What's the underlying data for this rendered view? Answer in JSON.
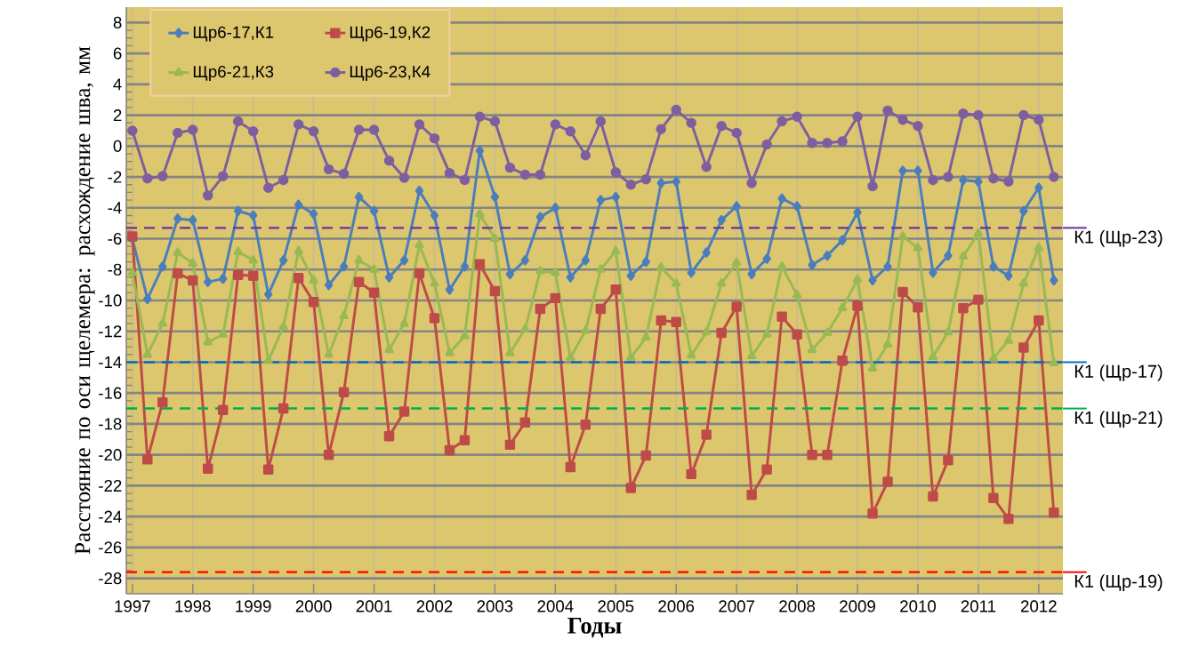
{
  "chart_data": {
    "type": "line",
    "xlabel": "Годы",
    "ylabel": "Расстояние по оси щелемера: расхождение шва, мм",
    "x": [
      1997,
      1997.25,
      1997.5,
      1997.75,
      1998,
      1998.25,
      1998.5,
      1998.75,
      1999,
      1999.25,
      1999.5,
      1999.75,
      2000,
      2000.25,
      2000.5,
      2000.75,
      2001,
      2001.25,
      2001.5,
      2001.75,
      2002,
      2002.25,
      2002.5,
      2002.75,
      2003,
      2003.25,
      2003.5,
      2003.75,
      2004,
      2004.25,
      2004.5,
      2004.75,
      2005,
      2005.25,
      2005.5,
      2005.75,
      2006,
      2006.25,
      2006.5,
      2006.75,
      2007,
      2007.25,
      2007.5,
      2007.75,
      2008,
      2008.25,
      2008.5,
      2008.75,
      2009,
      2009.25,
      2009.5,
      2009.75,
      2010,
      2010.25,
      2010.5,
      2010.75,
      2011,
      2011.25,
      2011.5,
      2011.75,
      2012,
      2012.25
    ],
    "series": [
      {
        "name": "Щр6-17,К1",
        "color": "#4a7ebb",
        "marker": "diamond",
        "values": [
          -6.0,
          -9.9,
          -7.8,
          -4.7,
          -4.8,
          -8.8,
          -8.6,
          -4.2,
          -4.5,
          -9.6,
          -7.4,
          -3.8,
          -4.4,
          -9.0,
          -7.8,
          -3.3,
          -4.2,
          -8.5,
          -7.4,
          -2.9,
          -4.5,
          -9.3,
          -7.8,
          -0.3,
          -3.3,
          -8.3,
          -7.4,
          -4.6,
          -4.0,
          -8.5,
          -7.4,
          -3.5,
          -3.3,
          -8.4,
          -7.5,
          -2.4,
          -2.3,
          -8.2,
          -6.9,
          -4.8,
          -3.9,
          -8.3,
          -7.3,
          -3.4,
          -3.9,
          -7.7,
          -7.1,
          -6.1,
          -4.3,
          -8.7,
          -7.8,
          -1.6,
          -1.6,
          -8.2,
          -7.1,
          -2.2,
          -2.3,
          -7.8,
          -8.4,
          -4.2,
          -2.7,
          -8.7
        ]
      },
      {
        "name": "Щр6-19,К2",
        "color": "#be4b48",
        "marker": "square",
        "values": [
          -5.85,
          -20.3,
          -16.6,
          -8.25,
          -8.7,
          -20.9,
          -17.1,
          -8.35,
          -8.4,
          -20.95,
          -17.0,
          -8.55,
          -10.1,
          -20.0,
          -15.95,
          -8.8,
          -9.5,
          -18.8,
          -17.2,
          -8.25,
          -11.15,
          -19.7,
          -19.05,
          -7.65,
          -9.4,
          -19.35,
          -17.9,
          -10.55,
          -9.85,
          -20.8,
          -18.05,
          -10.55,
          -9.3,
          -22.15,
          -20.05,
          -11.3,
          -11.4,
          -21.25,
          -18.7,
          -12.1,
          -10.4,
          -22.6,
          -20.95,
          -11.05,
          -12.2,
          -20.0,
          -20.0,
          -13.9,
          -10.35,
          -23.8,
          -21.75,
          -9.45,
          -10.45,
          -22.7,
          -20.35,
          -10.5,
          -9.95,
          -22.8,
          -24.15,
          -13.05,
          -11.3,
          -23.75
        ]
      },
      {
        "name": "Щр6-21,К3",
        "color": "#98b954",
        "marker": "triangle",
        "values": [
          -8.2,
          -13.5,
          -11.5,
          -6.9,
          -7.6,
          -12.7,
          -12.2,
          -6.85,
          -7.4,
          -13.9,
          -11.7,
          -6.8,
          -8.7,
          -13.5,
          -11.0,
          -7.4,
          -8.0,
          -13.2,
          -11.5,
          -6.4,
          -8.9,
          -13.4,
          -12.3,
          -4.4,
          -6.0,
          -13.4,
          -11.85,
          -8.1,
          -8.2,
          -13.7,
          -11.95,
          -8.0,
          -6.8,
          -13.7,
          -12.4,
          -7.85,
          -8.9,
          -13.55,
          -12.05,
          -8.9,
          -7.55,
          -13.6,
          -12.2,
          -7.8,
          -9.65,
          -13.2,
          -12.1,
          -10.5,
          -8.65,
          -14.4,
          -12.85,
          -5.85,
          -6.6,
          -13.65,
          -12.05,
          -7.15,
          -5.65,
          -13.75,
          -12.6,
          -8.9,
          -6.6,
          -14.05
        ]
      },
      {
        "name": "Щр6-23,К4",
        "color": "#7d5fa0",
        "marker": "circle",
        "values": [
          1.0,
          -2.1,
          -1.95,
          0.85,
          1.05,
          -3.2,
          -1.95,
          1.6,
          0.95,
          -2.7,
          -2.2,
          1.4,
          0.95,
          -1.5,
          -1.8,
          1.05,
          1.05,
          -0.95,
          -2.05,
          1.4,
          0.5,
          -1.75,
          -2.2,
          1.9,
          1.6,
          -1.4,
          -1.85,
          -1.85,
          1.4,
          0.95,
          -0.6,
          1.6,
          -1.7,
          -2.5,
          -2.15,
          1.1,
          2.35,
          1.5,
          -1.35,
          1.3,
          0.85,
          -2.4,
          0.1,
          1.6,
          1.9,
          0.2,
          0.2,
          0.3,
          1.9,
          -2.6,
          2.3,
          1.7,
          1.3,
          -2.2,
          -2.0,
          2.1,
          2.0,
          -2.1,
          -2.3,
          2.0,
          1.7,
          -2.0
        ]
      }
    ],
    "xlim": [
      1996.9,
      2012.4
    ],
    "ylim": [
      -29,
      9
    ],
    "xticks": [
      1997,
      1998,
      1999,
      2000,
      2001,
      2002,
      2003,
      2004,
      2005,
      2006,
      2007,
      2008,
      2009,
      2010,
      2011,
      2012
    ],
    "yticks": [
      -28,
      -26,
      -24,
      -22,
      -20,
      -18,
      -16,
      -14,
      -12,
      -10,
      -8,
      -6,
      -4,
      -2,
      0,
      2,
      4,
      6,
      8
    ],
    "ref_lines": [
      {
        "axis": "y",
        "value": -5.3,
        "label": "К1 (Щр-23)",
        "color": "#7030a0",
        "line_style": "dashed"
      },
      {
        "axis": "y",
        "value": -14,
        "label": "К1 (Щр-17)",
        "color": "#0070c0",
        "line_style": "dashed"
      },
      {
        "axis": "y",
        "value": -17,
        "label": "К1 (Щр-21)",
        "color": "#00b050",
        "line_style": "dashed"
      },
      {
        "axis": "y",
        "value": -27.6,
        "label": "К1 (Щр-19)",
        "color": "#ff0000",
        "line_style": "dashed"
      }
    ],
    "grid": true,
    "legend": "top left"
  }
}
